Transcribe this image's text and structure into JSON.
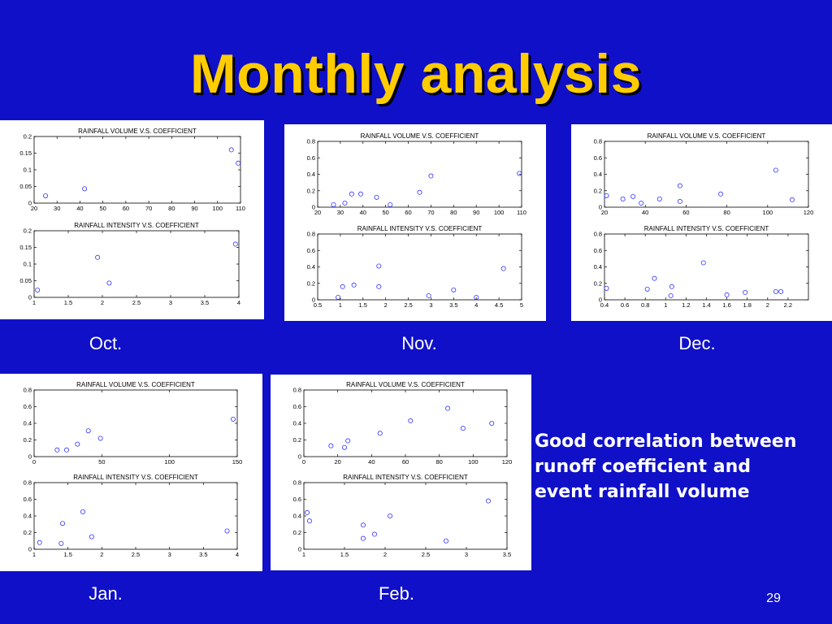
{
  "slide": {
    "title": "Monthly analysis",
    "note_lines": [
      "Good correlation between",
      "runoff coefficient and",
      "event rainfall volume"
    ],
    "page_number": "29"
  },
  "colors": {
    "background": "#1010c8",
    "title": "#ffcc00",
    "marker": "#3333ff"
  },
  "panels": [
    {
      "month": "Oct."
    },
    {
      "month": "Nov."
    },
    {
      "month": "Dec."
    },
    {
      "month": "Jan."
    },
    {
      "month": "Feb."
    }
  ],
  "chart_data": [
    {
      "panel": 0,
      "type": "scatter",
      "title": "RAINFALL VOLUME V.S. COEFFICIENT",
      "xlim": [
        20,
        110
      ],
      "ylim": [
        0,
        0.2
      ],
      "xticks": [
        20,
        30,
        40,
        50,
        60,
        70,
        80,
        90,
        100,
        110
      ],
      "yticks": [
        0,
        0.05,
        0.1,
        0.15,
        0.2
      ],
      "points": [
        [
          25,
          0.022
        ],
        [
          42,
          0.043
        ],
        [
          106,
          0.16
        ],
        [
          109,
          0.12
        ]
      ]
    },
    {
      "panel": 0,
      "type": "scatter",
      "title": "RAINFALL INTENSITY V.S. COEFFICIENT",
      "xlim": [
        1,
        4
      ],
      "ylim": [
        0,
        0.2
      ],
      "xticks": [
        1,
        1.5,
        2,
        2.5,
        3,
        3.5,
        4
      ],
      "yticks": [
        0,
        0.05,
        0.1,
        0.15,
        0.2
      ],
      "points": [
        [
          1.05,
          0.022
        ],
        [
          1.93,
          0.12
        ],
        [
          2.1,
          0.043
        ],
        [
          3.95,
          0.16
        ]
      ]
    },
    {
      "panel": 1,
      "type": "scatter",
      "title": "RAINFALL VOLUME V.S. COEFFICIENT",
      "xlim": [
        20,
        110
      ],
      "ylim": [
        0,
        0.8
      ],
      "xticks": [
        20,
        30,
        40,
        50,
        60,
        70,
        80,
        90,
        100,
        110
      ],
      "yticks": [
        0,
        0.2,
        0.4,
        0.6,
        0.8
      ],
      "points": [
        [
          27,
          0.03
        ],
        [
          32,
          0.05
        ],
        [
          35,
          0.16
        ],
        [
          39,
          0.16
        ],
        [
          46,
          0.12
        ],
        [
          52,
          0.03
        ],
        [
          65,
          0.18
        ],
        [
          70,
          0.38
        ],
        [
          109,
          0.41
        ]
      ]
    },
    {
      "panel": 1,
      "type": "scatter",
      "title": "RAINFALL INTENSITY V.S. COEFFICIENT",
      "xlim": [
        0.5,
        5
      ],
      "ylim": [
        0,
        0.8
      ],
      "xticks": [
        0.5,
        1,
        1.5,
        2,
        2.5,
        3,
        3.5,
        4,
        4.5,
        5
      ],
      "yticks": [
        0,
        0.2,
        0.4,
        0.6,
        0.8
      ],
      "points": [
        [
          0.95,
          0.03
        ],
        [
          1.05,
          0.16
        ],
        [
          1.3,
          0.18
        ],
        [
          1.85,
          0.41
        ],
        [
          1.85,
          0.16
        ],
        [
          2.95,
          0.05
        ],
        [
          3.5,
          0.12
        ],
        [
          4.0,
          0.03
        ],
        [
          4.6,
          0.38
        ]
      ]
    },
    {
      "panel": 2,
      "type": "scatter",
      "title": "RAINFALL VOLUME V.S. COEFFICIENT",
      "xlim": [
        20,
        120
      ],
      "ylim": [
        0,
        0.8
      ],
      "xticks": [
        20,
        40,
        60,
        80,
        100,
        120
      ],
      "yticks": [
        0,
        0.2,
        0.4,
        0.6,
        0.8
      ],
      "points": [
        [
          21,
          0.14
        ],
        [
          29,
          0.1
        ],
        [
          34,
          0.13
        ],
        [
          38,
          0.05
        ],
        [
          47,
          0.1
        ],
        [
          57,
          0.26
        ],
        [
          57,
          0.07
        ],
        [
          77,
          0.16
        ],
        [
          104,
          0.45
        ],
        [
          112,
          0.09
        ]
      ]
    },
    {
      "panel": 2,
      "type": "scatter",
      "title": "RAINFALL INTENSITY V.S. COEFFICIENT",
      "xlim": [
        0.4,
        2.4
      ],
      "ylim": [
        0,
        0.8
      ],
      "xticks": [
        0.4,
        0.6,
        0.8,
        1,
        1.2,
        1.4,
        1.6,
        1.8,
        2,
        2.2
      ],
      "yticks": [
        0,
        0.2,
        0.4,
        0.6,
        0.8
      ],
      "points": [
        [
          0.42,
          0.14
        ],
        [
          0.82,
          0.13
        ],
        [
          0.89,
          0.26
        ],
        [
          1.05,
          0.05
        ],
        [
          1.06,
          0.16
        ],
        [
          1.37,
          0.45
        ],
        [
          1.6,
          0.06
        ],
        [
          1.78,
          0.09
        ],
        [
          2.08,
          0.1
        ],
        [
          2.13,
          0.1
        ]
      ]
    },
    {
      "panel": 3,
      "type": "scatter",
      "title": "RAINFALL VOLUME V.S. COEFFICIENT",
      "xlim": [
        0,
        150
      ],
      "ylim": [
        0,
        0.8
      ],
      "xticks": [
        0,
        50,
        100,
        150
      ],
      "yticks": [
        0,
        0.2,
        0.4,
        0.6,
        0.8
      ],
      "points": [
        [
          17,
          0.08
        ],
        [
          24,
          0.08
        ],
        [
          32,
          0.15
        ],
        [
          40,
          0.31
        ],
        [
          49,
          0.22
        ],
        [
          147,
          0.45
        ]
      ]
    },
    {
      "panel": 3,
      "type": "scatter",
      "title": "RAINFALL INTENSITY V.S. COEFFICIENT",
      "xlim": [
        1,
        4
      ],
      "ylim": [
        0,
        0.8
      ],
      "xticks": [
        1,
        1.5,
        2,
        2.5,
        3,
        3.5,
        4
      ],
      "yticks": [
        0,
        0.2,
        0.4,
        0.6,
        0.8
      ],
      "points": [
        [
          1.08,
          0.08
        ],
        [
          1.4,
          0.07
        ],
        [
          1.42,
          0.31
        ],
        [
          1.72,
          0.45
        ],
        [
          1.85,
          0.15
        ],
        [
          3.85,
          0.22
        ]
      ]
    },
    {
      "panel": 4,
      "type": "scatter",
      "title": "RAINFALL VOLUME V.S. COEFFICIENT",
      "xlim": [
        0,
        120
      ],
      "ylim": [
        0,
        0.8
      ],
      "xticks": [
        0,
        20,
        40,
        60,
        80,
        100,
        120
      ],
      "yticks": [
        0,
        0.2,
        0.4,
        0.6,
        0.8
      ],
      "points": [
        [
          16,
          0.13
        ],
        [
          24,
          0.11
        ],
        [
          26,
          0.19
        ],
        [
          45,
          0.28
        ],
        [
          63,
          0.43
        ],
        [
          85,
          0.58
        ],
        [
          94,
          0.34
        ],
        [
          111,
          0.4
        ]
      ]
    },
    {
      "panel": 4,
      "type": "scatter",
      "title": "RAINFALL INTENSITY V.S. COEFFICIENT",
      "xlim": [
        1,
        3.5
      ],
      "ylim": [
        0,
        0.8
      ],
      "xticks": [
        1,
        1.5,
        2,
        2.5,
        3,
        3.5
      ],
      "yticks": [
        0,
        0.2,
        0.4,
        0.6,
        0.8
      ],
      "points": [
        [
          1.04,
          0.44
        ],
        [
          1.07,
          0.34
        ],
        [
          1.73,
          0.29
        ],
        [
          1.73,
          0.13
        ],
        [
          1.87,
          0.18
        ],
        [
          2.06,
          0.4
        ],
        [
          2.75,
          0.1
        ],
        [
          3.27,
          0.58
        ]
      ]
    }
  ]
}
